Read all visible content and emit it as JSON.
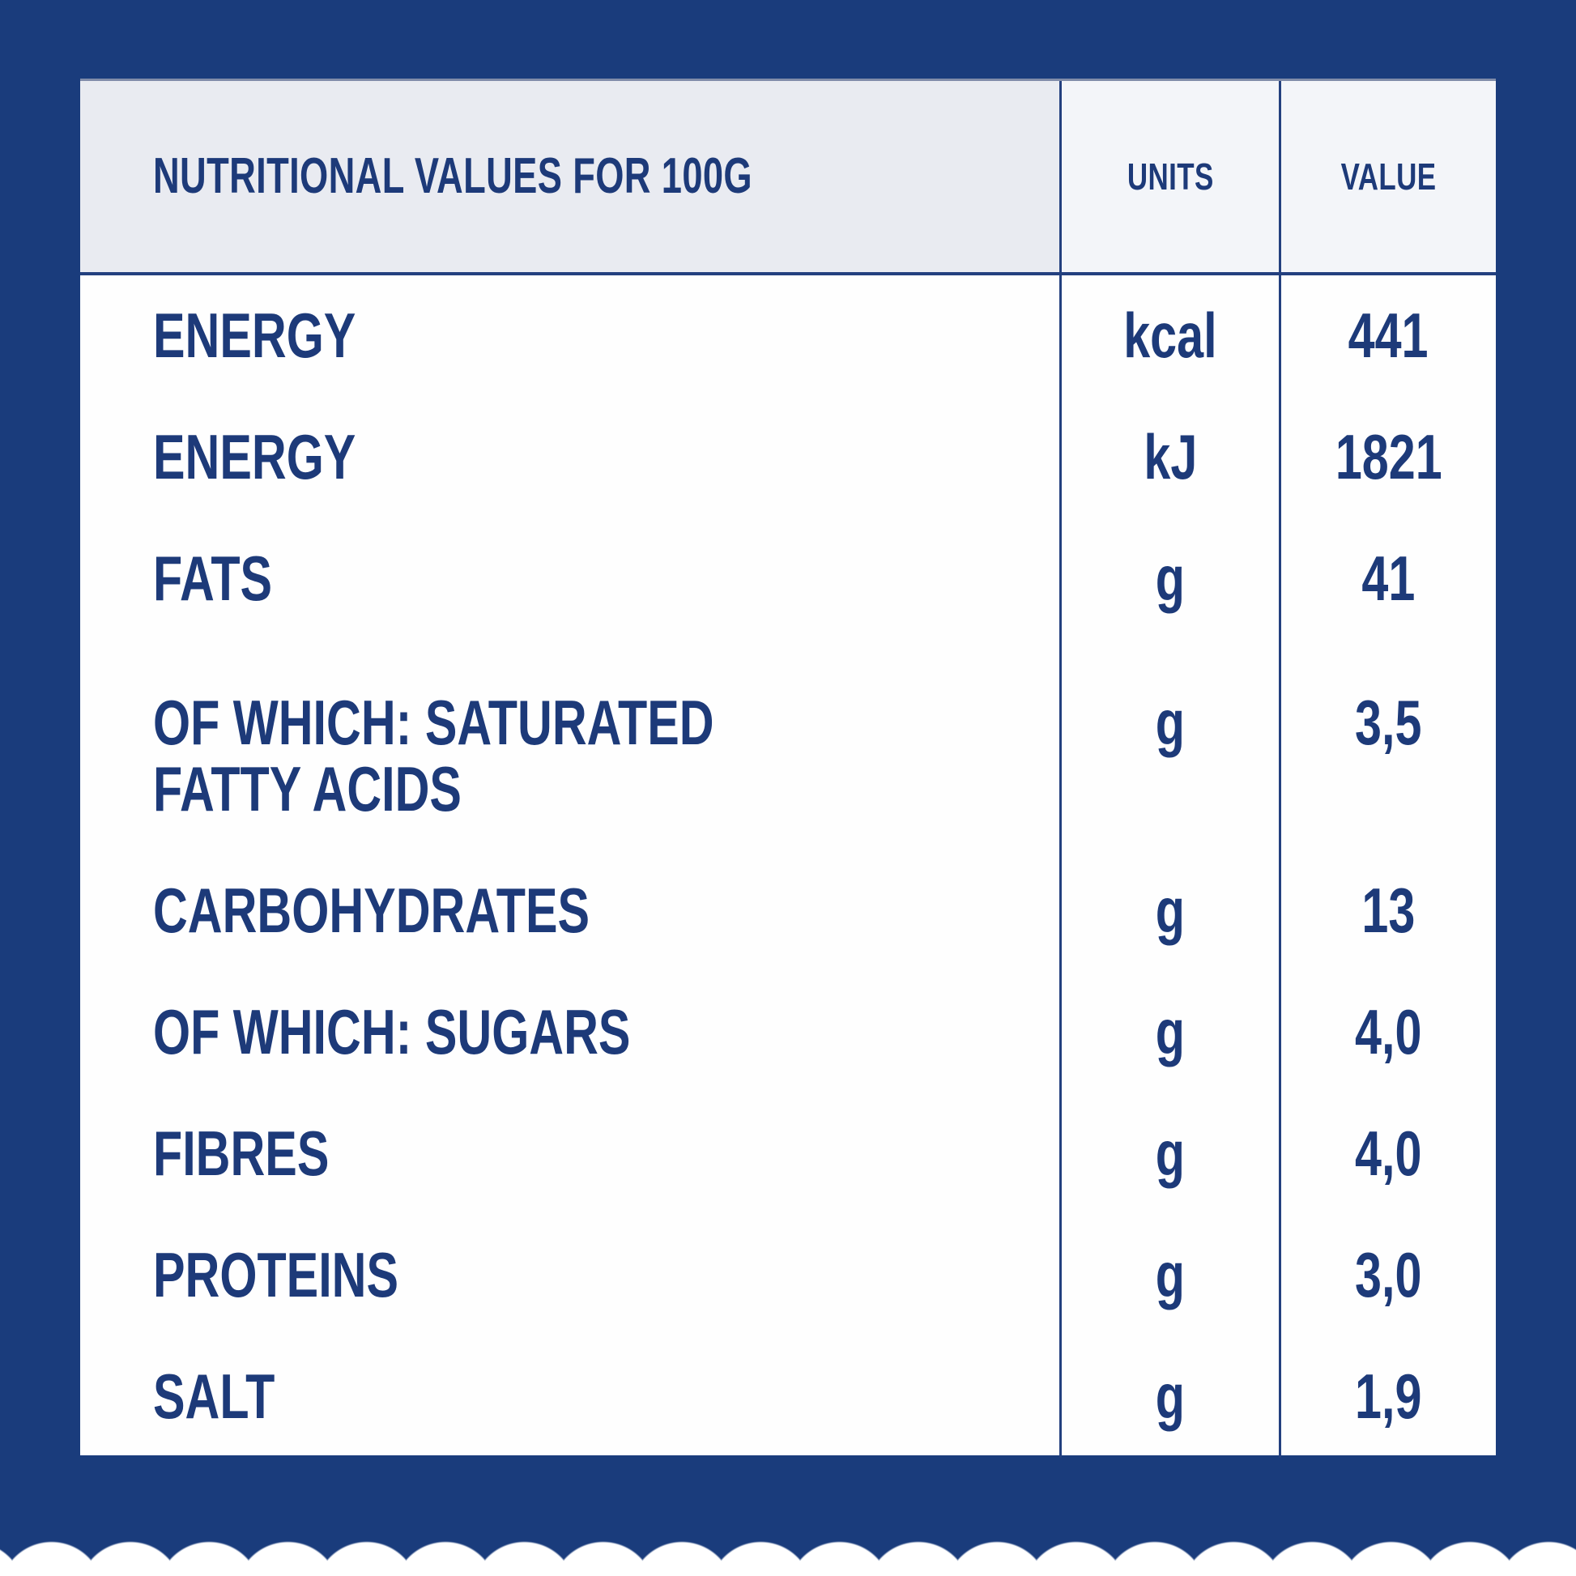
{
  "table": {
    "header": {
      "label": "NUTRITIONAL VALUES FOR 100G",
      "units": "UNITS",
      "value": "VALUE"
    },
    "rows": [
      {
        "label": "ENERGY",
        "unit": "kcal",
        "value": "441"
      },
      {
        "label": "ENERGY",
        "unit": "kJ",
        "value": "1821"
      },
      {
        "label": "FATS",
        "unit": "g",
        "value": "41"
      },
      {
        "label": "OF WHICH: SATURATED FATTY ACIDS",
        "unit": "g",
        "value": "3,5"
      },
      {
        "label": "CARBOHYDRATES",
        "unit": "g",
        "value": "13"
      },
      {
        "label": "OF WHICH: SUGARS",
        "unit": "g",
        "value": "4,0"
      },
      {
        "label": "FIBRES",
        "unit": "g",
        "value": "4,0"
      },
      {
        "label": "PROTEINS",
        "unit": "g",
        "value": "3,0"
      },
      {
        "label": "SALT",
        "unit": "g",
        "value": "1,9"
      }
    ]
  },
  "colors": {
    "background_navy": "#1a3c7c",
    "text_navy": "#1d3a79",
    "divider_navy": "#23407f",
    "header_left_bg": "#e9ebf1",
    "header_right_bg": "#f3f5f9",
    "table_bg": "#fefefe",
    "scallop_white": "#ffffff"
  }
}
